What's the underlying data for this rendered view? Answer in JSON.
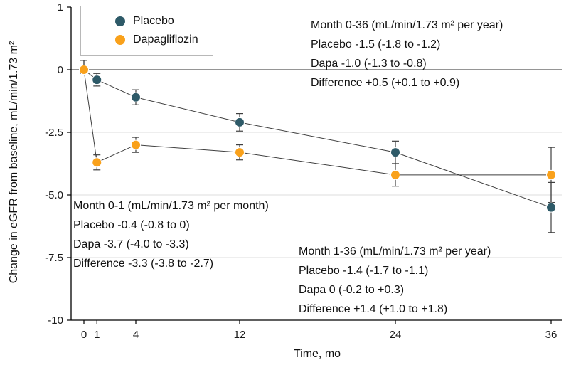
{
  "chart_data": {
    "type": "line",
    "title": "",
    "xlabel": "Time, mo",
    "ylabel": "Change in eGFR from baseline, mL/min/1.73 m²",
    "x_ticks": [
      "0",
      "1",
      "4",
      "12",
      "24",
      "36"
    ],
    "y_ticks": [
      "1",
      "0",
      "-2.5",
      "-5.0",
      "-7.5",
      "-10"
    ],
    "xlim": [
      0,
      36
    ],
    "ylim": [
      -10,
      1
    ],
    "grid": "horizontal-light-at--2.5--5.0--7.5-plus-dark-zero-line",
    "legend_position": "top-left-boxed",
    "line_color": "#3f3f3f",
    "series": [
      {
        "name": "Placebo",
        "color": "#2e5a68",
        "x": [
          0,
          1,
          4,
          12,
          24,
          36
        ],
        "y": [
          0,
          -0.4,
          -1.1,
          -2.1,
          -3.3,
          -5.5
        ],
        "err": [
          0.15,
          0.25,
          0.3,
          0.35,
          0.45,
          1.0
        ]
      },
      {
        "name": "Dapagliflozin",
        "color": "#f9a11b",
        "x": [
          0,
          1,
          4,
          12,
          24,
          36
        ],
        "y": [
          0,
          -3.7,
          -3.0,
          -3.3,
          -4.2,
          -4.2
        ],
        "err": [
          0.15,
          0.3,
          0.3,
          0.3,
          0.45,
          1.1
        ]
      }
    ],
    "annotations": {
      "month_0_36": {
        "lines": [
          "Month 0-36 (mL/min/1.73 m² per year)",
          "Placebo -1.5 (-1.8 to -1.2)",
          "Dapa -1.0 (-1.3 to -0.8)",
          "Difference +0.5 (+0.1 to +0.9)"
        ]
      },
      "month_0_1": {
        "lines": [
          "Month 0-1 (mL/min/1.73 m² per month)",
          "Placebo -0.4 (-0.8 to 0)",
          "Dapa -3.7 (-4.0 to -3.3)",
          "Difference -3.3 (-3.8 to -2.7)"
        ]
      },
      "month_1_36": {
        "lines": [
          "Month 1-36 (mL/min/1.73 m² per year)",
          "Placebo -1.4 (-1.7 to -1.1)",
          "Dapa 0 (-0.2 to +0.3)",
          "Difference +1.4 (+1.0 to +1.8)"
        ]
      }
    }
  }
}
